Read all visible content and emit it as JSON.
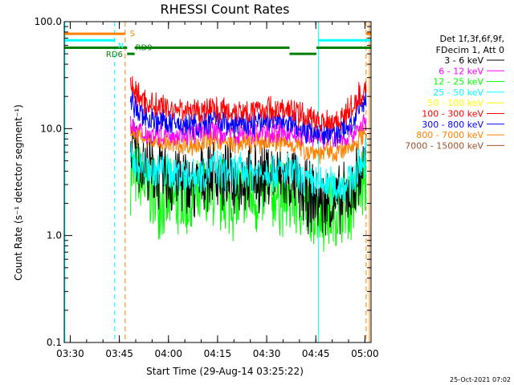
{
  "chart_data": {
    "type": "line",
    "title": "RHESSI Count Rates",
    "xlabel": "Start Time (29-Aug-14 03:25:22)",
    "ylabel": "Count Rate (s⁻¹ detector segment⁻¹)",
    "yscale": "log",
    "ylim": [
      0.1,
      100
    ],
    "xlim_minutes": [
      2.8,
      96.5
    ],
    "x_ticks": [
      {
        "label": "03:30",
        "minute": 4.63
      },
      {
        "label": "03:45",
        "minute": 19.63
      },
      {
        "label": "04:00",
        "minute": 34.63
      },
      {
        "label": "04:15",
        "minute": 49.63
      },
      {
        "label": "04:30",
        "minute": 64.63
      },
      {
        "label": "04:45",
        "minute": 79.63
      },
      {
        "label": "05:00",
        "minute": 94.63
      }
    ],
    "y_ticks": [
      {
        "label": "0.1",
        "value": 0.1
      },
      {
        "label": "1.0",
        "value": 1
      },
      {
        "label": "10.0",
        "value": 10
      },
      {
        "label": "100.0",
        "value": 100
      }
    ],
    "legend_header": [
      "Det 1f,3f,6f,9f,",
      "FDecim 1, Att 0"
    ],
    "legend_placement": "right",
    "timestamp": "25-Oct-2021 07:02",
    "series": [
      {
        "name": "3 - 6 keV",
        "color": "#000000",
        "values": [
          6.5,
          5.5,
          4.2,
          3.8,
          3.5,
          3.2,
          3.6,
          3.0,
          2.8,
          3.8,
          4.2,
          3.6,
          3.3,
          3.2,
          3.4,
          3.3,
          3.5,
          3.8,
          3.6,
          3.4,
          3.2,
          2.4,
          2.3,
          2.2,
          2.0,
          2.0,
          2.1,
          2.8,
          5.0
        ]
      },
      {
        "name": "6 - 12 keV",
        "color": "#ff00ff",
        "values": [
          10.5,
          9.5,
          9.0,
          9.0,
          9.0,
          9.0,
          8.8,
          9.0,
          9.0,
          9.5,
          10.0,
          9.0,
          9.0,
          9.0,
          9.0,
          9.0,
          9.2,
          9.5,
          9.2,
          9.0,
          9.0,
          8.5,
          8.5,
          8.5,
          8.0,
          8.0,
          8.0,
          9.0,
          12.0
        ]
      },
      {
        "name": "12 - 25 keV",
        "color": "#00ff00",
        "values": [
          4.0,
          3.5,
          2.8,
          2.5,
          2.2,
          2.0,
          2.2,
          2.0,
          2.0,
          2.3,
          2.6,
          2.3,
          2.2,
          2.2,
          2.3,
          2.2,
          2.3,
          2.5,
          2.4,
          2.3,
          2.2,
          1.9,
          1.8,
          1.8,
          1.7,
          1.7,
          1.8,
          2.2,
          3.5
        ]
      },
      {
        "name": "25 - 50 keV",
        "color": "#00ffff",
        "values": [
          5.0,
          4.5,
          4.2,
          4.0,
          4.0,
          3.8,
          3.9,
          3.7,
          3.7,
          4.0,
          4.3,
          4.0,
          3.9,
          3.9,
          4.0,
          3.9,
          4.0,
          4.2,
          4.0,
          3.9,
          3.8,
          3.2,
          3.1,
          3.0,
          3.0,
          2.9,
          3.0,
          3.5,
          5.5
        ]
      },
      {
        "name": "50 - 100 keV",
        "color": "#ffff00",
        "values": []
      },
      {
        "name": "100 - 300 keV",
        "color": "#ff0000",
        "values": [
          26.0,
          20.0,
          17.5,
          16.5,
          16.0,
          15.0,
          15.5,
          15.0,
          14.5,
          15.0,
          16.0,
          15.0,
          14.5,
          15.0,
          15.0,
          14.5,
          15.0,
          15.5,
          15.0,
          15.0,
          14.5,
          13.0,
          12.5,
          12.0,
          12.0,
          12.0,
          13.0,
          16.0,
          26.0
        ]
      },
      {
        "name": "300 - 800 keV",
        "color": "#0000ff",
        "values": [
          18.0,
          14.0,
          12.5,
          12.0,
          11.5,
          11.0,
          11.0,
          11.0,
          10.5,
          11.0,
          12.0,
          11.5,
          11.0,
          11.0,
          11.0,
          11.0,
          11.5,
          12.0,
          11.5,
          11.0,
          11.0,
          10.0,
          9.5,
          9.5,
          9.0,
          9.0,
          9.5,
          11.5,
          19.0
        ]
      },
      {
        "name": "800 - 7000 keV",
        "color": "#ff8000",
        "values": [
          10.0,
          8.5,
          7.8,
          7.5,
          7.5,
          7.2,
          7.2,
          7.0,
          7.0,
          7.5,
          8.0,
          7.5,
          7.3,
          7.3,
          7.4,
          7.3,
          7.5,
          7.8,
          7.5,
          7.3,
          7.2,
          6.5,
          6.2,
          6.0,
          6.0,
          5.9,
          6.2,
          7.0,
          10.0
        ]
      },
      {
        "name": "7000 - 15000 keV",
        "color": "#a0522d",
        "values": []
      }
    ],
    "series_x_minutes": [
      23.0,
      25.5,
      28.0,
      30.5,
      33.0,
      35.5,
      38.0,
      40.5,
      43.0,
      45.5,
      48.0,
      50.5,
      53.0,
      55.5,
      58.0,
      60.5,
      63.0,
      65.5,
      68.0,
      70.5,
      73.0,
      75.5,
      78.0,
      80.5,
      83.0,
      85.5,
      88.0,
      91.0,
      95.0
    ],
    "annotations": [
      {
        "label": "S",
        "color": "#ff8000"
      },
      {
        "label": "N",
        "color": "#00ffff"
      },
      {
        "label": "RD6",
        "color": "#008000"
      },
      {
        "label": "RD9",
        "color": "#008000"
      }
    ],
    "state_bars": [
      {
        "color": "#ff8000",
        "value": 77,
        "start_min": 2.8,
        "end_min": 21.4
      },
      {
        "color": "#ff8000",
        "value": 77,
        "start_min": 95.0,
        "end_min": 96.5
      },
      {
        "color": "#00ffff",
        "value": 67,
        "start_min": 2.8,
        "end_min": 18.2
      },
      {
        "color": "#00ffff",
        "value": 67,
        "start_min": 80.4,
        "end_min": 96.5
      },
      {
        "color": "#008000",
        "value": 57,
        "start_min": 2.8,
        "end_min": 22.0
      },
      {
        "color": "#008000",
        "value": 50,
        "start_min": 22.0,
        "end_min": 24.3
      },
      {
        "color": "#008000",
        "value": 57,
        "start_min": 24.3,
        "end_min": 71.6
      },
      {
        "color": "#008000",
        "value": 50,
        "start_min": 71.6,
        "end_min": 79.8
      },
      {
        "color": "#008000",
        "value": 57,
        "start_min": 79.8,
        "end_min": 96.5
      }
    ],
    "vertical_lines": [
      {
        "minute": 3.0,
        "color": "#00ffff",
        "style": "solid"
      },
      {
        "minute": 18.2,
        "color": "#00ffff",
        "style": "dashed"
      },
      {
        "minute": 21.4,
        "color": "#ff8000",
        "style": "dashed"
      },
      {
        "minute": 80.4,
        "color": "#00ffff",
        "style": "solid"
      },
      {
        "minute": 95.0,
        "color": "#ff8000",
        "style": "dashed"
      },
      {
        "minute": 96.0,
        "color": "#ff8000",
        "style": "solid"
      }
    ]
  }
}
